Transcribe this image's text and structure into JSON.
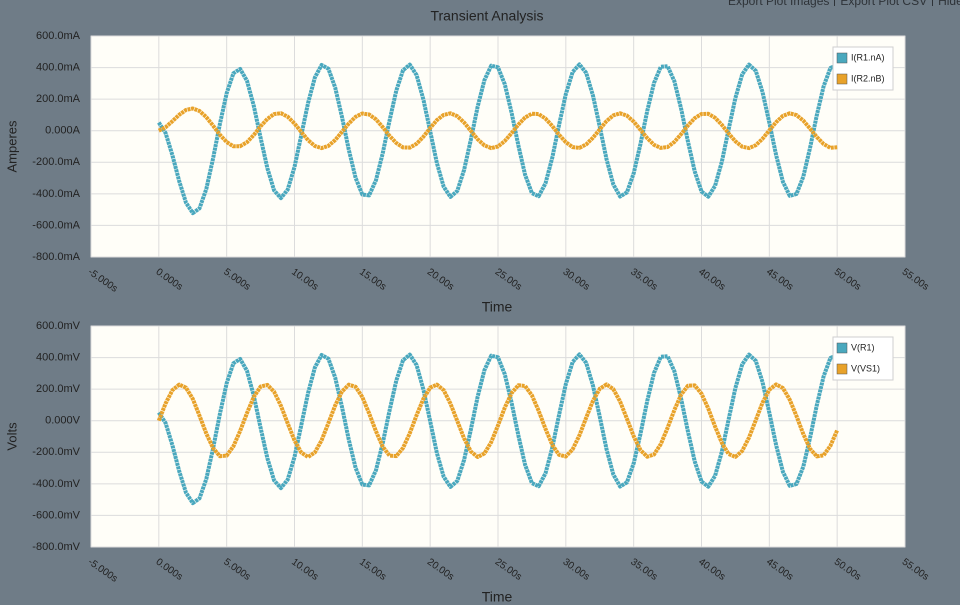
{
  "toolbar": {
    "links": [
      "Export Plot Images",
      "Export Plot CSV",
      "Hide"
    ]
  },
  "chart_data": [
    {
      "type": "line",
      "title": "Transient Analysis",
      "xlabel": "Time",
      "ylabel": "Amperes",
      "grid": true,
      "legend": "upper right",
      "xlim": [
        -5,
        55
      ],
      "ylim": [
        -800,
        600
      ],
      "xticks": [
        {
          "value": -5,
          "label": "-5.000s"
        },
        {
          "value": 0,
          "label": "0.000s"
        },
        {
          "value": 5,
          "label": "5.000s"
        },
        {
          "value": 10,
          "label": "10.00s"
        },
        {
          "value": 15,
          "label": "15.00s"
        },
        {
          "value": 20,
          "label": "20.00s"
        },
        {
          "value": 25,
          "label": "25.00s"
        },
        {
          "value": 30,
          "label": "30.00s"
        },
        {
          "value": 35,
          "label": "35.00s"
        },
        {
          "value": 40,
          "label": "40.00s"
        },
        {
          "value": 45,
          "label": "45.00s"
        },
        {
          "value": 50,
          "label": "50.00s"
        },
        {
          "value": 55,
          "label": "55.00s"
        }
      ],
      "yticks": [
        {
          "value": 600,
          "label": "600.0mA"
        },
        {
          "value": 400,
          "label": "400.0mA"
        },
        {
          "value": 200,
          "label": "200.0mA"
        },
        {
          "value": 0,
          "label": "0.000A"
        },
        {
          "value": -200,
          "label": "-200.0mA"
        },
        {
          "value": -400,
          "label": "-400.0mA"
        },
        {
          "value": -600,
          "label": "-600.0mA"
        },
        {
          "value": -800,
          "label": "-800.0mA"
        }
      ],
      "x": [
        0,
        0.5,
        1,
        1.5,
        2,
        2.5,
        3,
        3.5,
        4,
        4.5,
        5,
        5.5,
        6,
        6.5,
        7,
        7.5,
        8,
        8.5,
        9,
        9.5,
        10,
        10.5,
        11,
        11.5,
        12,
        12.5,
        13,
        13.5,
        14,
        14.5,
        15,
        15.5,
        16,
        16.5,
        17,
        17.5,
        18,
        18.5,
        19,
        19.5,
        20,
        20.5,
        21,
        21.5,
        22,
        22.5,
        23,
        23.5,
        24,
        24.5,
        25,
        25.5,
        26,
        26.5,
        27,
        27.5,
        28,
        28.5,
        29,
        29.5,
        30,
        30.5,
        31,
        31.5,
        32,
        32.5,
        33,
        33.5,
        34,
        34.5,
        35,
        35.5,
        36,
        36.5,
        37,
        37.5,
        38,
        38.5,
        39,
        39.5,
        40,
        40.5,
        41,
        41.5,
        42,
        42.5,
        43,
        43.5,
        44,
        44.5,
        45,
        45.5,
        46,
        46.5,
        47,
        47.5,
        48,
        48.5,
        49,
        49.5,
        50
      ],
      "series": [
        {
          "name": "I(R1.nA)",
          "color": "#4aa8be",
          "values": [
            52,
            -15,
            -155,
            -319,
            -456,
            -522,
            -492,
            -369,
            -175,
            43,
            238,
            364,
            391,
            316,
            157,
            -45,
            -238,
            -378,
            -427,
            -373,
            -230,
            -28,
            176,
            338,
            416,
            393,
            273,
            87,
            -121,
            -299,
            -404,
            -410,
            -315,
            -144,
            63,
            254,
            383,
            419,
            352,
            198,
            -4,
            -205,
            -355,
            -419,
            -381,
            -248,
            -55,
            151,
            320,
            412,
            402,
            294,
            114,
            -94,
            -279,
            -395,
            -415,
            -333,
            -170,
            35,
            231,
            371,
            420,
            366,
            222,
            24,
            -180,
            -340,
            -417,
            -391,
            -270,
            -83,
            124,
            302,
            405,
            409,
            313,
            140,
            -67,
            -257,
            -385,
            -418,
            -349,
            -195,
            8,
            207,
            357,
            419,
            379,
            245,
            52,
            -154,
            -323,
            -412,
            -401,
            -291,
            -110,
            98,
            281,
            397,
            415
          ]
        },
        {
          "name": "I(R2.nB)",
          "color": "#e8a22a",
          "values": [
            0,
            22,
            60,
            101,
            132,
            141,
            125,
            86,
            32,
            -26,
            -72,
            -99,
            -98,
            -73,
            -27,
            28,
            75,
            105,
            111,
            89,
            46,
            -8,
            -60,
            -97,
            -110,
            -96,
            -59,
            -7,
            46,
            88,
            109,
            103,
            72,
            23,
            -32,
            -78,
            -106,
            -107,
            -83,
            -38,
            17,
            67,
            100,
            110,
            92,
            52,
            -1,
            -54,
            -93,
            -110,
            -100,
            -65,
            -15,
            39,
            84,
            108,
            105,
            77,
            30,
            -25,
            -73,
            -104,
            -109,
            -87,
            -44,
            9,
            61,
            97,
            110,
            96,
            58,
            6,
            -47,
            -89,
            -109,
            -103,
            -71,
            -22,
            33,
            79,
            106,
            107,
            82,
            37,
            -17,
            -67,
            -101,
            -110,
            -92,
            -51,
            2,
            54,
            94,
            110,
            99,
            64,
            14,
            -40,
            -84,
            -108,
            -105
          ]
        }
      ]
    },
    {
      "type": "line",
      "xlabel": "Time",
      "ylabel": "Volts",
      "grid": true,
      "legend": "upper right",
      "xlim": [
        -5,
        55
      ],
      "ylim": [
        -800,
        600
      ],
      "xticks": [
        {
          "value": -5,
          "label": "-5.000s"
        },
        {
          "value": 0,
          "label": "0.000s"
        },
        {
          "value": 5,
          "label": "5.000s"
        },
        {
          "value": 10,
          "label": "10.00s"
        },
        {
          "value": 15,
          "label": "15.00s"
        },
        {
          "value": 20,
          "label": "20.00s"
        },
        {
          "value": 25,
          "label": "25.00s"
        },
        {
          "value": 30,
          "label": "30.00s"
        },
        {
          "value": 35,
          "label": "35.00s"
        },
        {
          "value": 40,
          "label": "40.00s"
        },
        {
          "value": 45,
          "label": "45.00s"
        },
        {
          "value": 50,
          "label": "50.00s"
        },
        {
          "value": 55,
          "label": "55.00s"
        }
      ],
      "yticks": [
        {
          "value": 600,
          "label": "600.0mV"
        },
        {
          "value": 400,
          "label": "400.0mV"
        },
        {
          "value": 200,
          "label": "200.0mV"
        },
        {
          "value": 0,
          "label": "0.000V"
        },
        {
          "value": -200,
          "label": "-200.0mV"
        },
        {
          "value": -400,
          "label": "-400.0mV"
        },
        {
          "value": -600,
          "label": "-600.0mV"
        },
        {
          "value": -800,
          "label": "-800.0mV"
        }
      ],
      "x": [
        0,
        0.5,
        1,
        1.5,
        2,
        2.5,
        3,
        3.5,
        4,
        4.5,
        5,
        5.5,
        6,
        6.5,
        7,
        7.5,
        8,
        8.5,
        9,
        9.5,
        10,
        10.5,
        11,
        11.5,
        12,
        12.5,
        13,
        13.5,
        14,
        14.5,
        15,
        15.5,
        16,
        16.5,
        17,
        17.5,
        18,
        18.5,
        19,
        19.5,
        20,
        20.5,
        21,
        21.5,
        22,
        22.5,
        23,
        23.5,
        24,
        24.5,
        25,
        25.5,
        26,
        26.5,
        27,
        27.5,
        28,
        28.5,
        29,
        29.5,
        30,
        30.5,
        31,
        31.5,
        32,
        32.5,
        33,
        33.5,
        34,
        34.5,
        35,
        35.5,
        36,
        36.5,
        37,
        37.5,
        38,
        38.5,
        39,
        39.5,
        40,
        40.5,
        41,
        41.5,
        42,
        42.5,
        43,
        43.5,
        44,
        44.5,
        45,
        45.5,
        46,
        46.5,
        47,
        47.5,
        48,
        48.5,
        49,
        49.5,
        50
      ],
      "series": [
        {
          "name": "V(R1)",
          "color": "#4aa8be",
          "values": [
            52,
            -15,
            -155,
            -319,
            -456,
            -522,
            -492,
            -369,
            -175,
            43,
            238,
            364,
            391,
            316,
            157,
            -45,
            -238,
            -378,
            -427,
            -373,
            -230,
            -28,
            176,
            338,
            416,
            393,
            273,
            87,
            -121,
            -299,
            -404,
            -410,
            -315,
            -144,
            63,
            254,
            383,
            419,
            352,
            198,
            -4,
            -205,
            -355,
            -419,
            -381,
            -248,
            -55,
            151,
            320,
            412,
            402,
            294,
            114,
            -94,
            -279,
            -395,
            -415,
            -333,
            -170,
            35,
            231,
            371,
            420,
            366,
            222,
            24,
            -180,
            -340,
            -417,
            -391,
            -270,
            -83,
            124,
            302,
            405,
            409,
            313,
            140,
            -67,
            -257,
            -385,
            -418,
            -349,
            -195,
            8,
            207,
            357,
            419,
            379,
            245,
            52,
            -154,
            -323,
            -412,
            -401,
            -291,
            -110,
            98,
            281,
            397,
            415
          ]
        },
        {
          "name": "V(VS1)",
          "color": "#e8a22a",
          "values": [
            0,
            110,
            193,
            229,
            209,
            138,
            32,
            -81,
            -174,
            -225,
            -221,
            -162,
            -64,
            49,
            151,
            216,
            227,
            184,
            95,
            -17,
            -125,
            -202,
            -230,
            -201,
            -124,
            -15,
            97,
            185,
            228,
            215,
            150,
            47,
            -66,
            -164,
            -221,
            -224,
            -173,
            -79,
            35,
            139,
            210,
            229,
            193,
            108,
            -2,
            -112,
            -195,
            -230,
            -208,
            -136,
            -30,
            83,
            175,
            225,
            220,
            161,
            62,
            -52,
            -153,
            -216,
            -227,
            -182,
            -93,
            19,
            127,
            203,
            230,
            200,
            122,
            13,
            -98,
            -186,
            -228,
            -214,
            -148,
            -45,
            68,
            165,
            222,
            224,
            171,
            77,
            -37,
            -141,
            -211,
            -229,
            -191,
            -107,
            4,
            114,
            196,
            230,
            207,
            134,
            29,
            -84,
            -177,
            -226,
            -219,
            -159,
            -60
          ]
        }
      ]
    }
  ]
}
